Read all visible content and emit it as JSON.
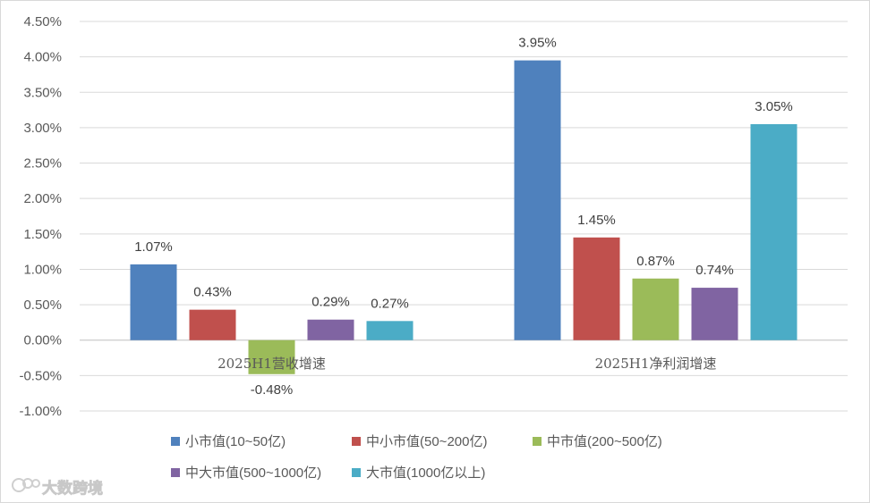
{
  "chart_data": {
    "type": "bar",
    "categories": [
      "2025H1营收增速",
      "2025H1净利润增速"
    ],
    "series": [
      {
        "name": "小市值(10~50亿)",
        "color": "#4F81BD",
        "values": [
          1.07,
          3.95
        ],
        "labels": [
          "1.07%",
          "3.95%"
        ]
      },
      {
        "name": "中小市值(50~200亿)",
        "color": "#C0504D",
        "values": [
          0.43,
          1.45
        ],
        "labels": [
          "0.43%",
          "1.45%"
        ]
      },
      {
        "name": "中市值(200~500亿)",
        "color": "#9BBB59",
        "values": [
          -0.48,
          0.87
        ],
        "labels": [
          "-0.48%",
          "0.87%"
        ]
      },
      {
        "name": "中大市值(500~1000亿)",
        "color": "#8064A2",
        "values": [
          0.29,
          0.74
        ],
        "labels": [
          "0.29%",
          "0.74%"
        ]
      },
      {
        "name": "大市值(1000亿以上)",
        "color": "#4BACC6",
        "values": [
          0.27,
          3.05
        ],
        "labels": [
          "0.27%",
          "3.05%"
        ]
      }
    ],
    "yticks": [
      "4.50%",
      "4.00%",
      "3.50%",
      "3.00%",
      "2.50%",
      "2.00%",
      "1.50%",
      "1.00%",
      "0.50%",
      "0.00%",
      "-0.50%",
      "-1.00%"
    ],
    "ylim": [
      -1.0,
      4.5
    ],
    "grid": true,
    "legend_position": "bottom"
  },
  "watermark": "大数跨境"
}
